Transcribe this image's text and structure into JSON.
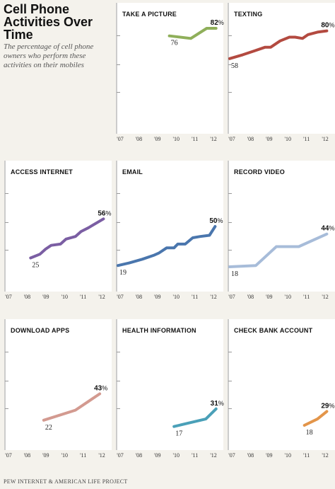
{
  "header": {
    "title": "Cell Phone Activities Over Time",
    "subtitle": "The percentage of cell phone owners who perform these activities on their mobiles"
  },
  "footer": {
    "source": "PEW INTERNET & AMERICAN LIFE PROJECT"
  },
  "chart_data": [
    {
      "type": "line",
      "title": "TAKE A PICTURE",
      "color": "#8faf5a",
      "ylim": [
        0,
        100
      ],
      "x_ticks": [
        "'07",
        "'08",
        "'09",
        "'10",
        "'11",
        "'12"
      ],
      "start_label": "76",
      "end_label": "82",
      "end_suffix": "%",
      "series": [
        {
          "x": [
            2009.75,
            2010.9,
            2011.75,
            2012.25
          ],
          "values": [
            76,
            74,
            82,
            82
          ]
        }
      ]
    },
    {
      "type": "line",
      "title": "TEXTING",
      "color": "#b34a40",
      "ylim": [
        0,
        100
      ],
      "x_ticks": [
        "'07",
        "'08",
        "'09",
        "'10",
        "'11",
        "'12"
      ],
      "start_label": "58",
      "end_label": "80",
      "end_suffix": "%",
      "series": [
        {
          "x": [
            2007,
            2007.7,
            2008.3,
            2008.9,
            2009.2,
            2009.7,
            2010.2,
            2010.5,
            2010.9,
            2011.2,
            2011.7,
            2012.2
          ],
          "values": [
            58,
            61,
            64,
            67,
            67,
            72,
            75,
            75,
            74,
            77,
            79,
            80
          ]
        }
      ]
    },
    {
      "type": "line",
      "title": "ACCESS INTERNET",
      "color": "#7b5ea3",
      "ylim": [
        0,
        100
      ],
      "x_ticks": [
        "'07",
        "'08",
        "'09",
        "'10",
        "'11",
        "'12"
      ],
      "start_label": "25",
      "end_label": "56",
      "end_suffix": "%",
      "series": [
        {
          "x": [
            2008.3,
            2008.8,
            2009.1,
            2009.4,
            2009.9,
            2010.2,
            2010.7,
            2011,
            2011.4,
            2012.2
          ],
          "values": [
            25,
            28,
            32,
            35,
            36,
            40,
            42,
            46,
            49,
            56
          ]
        }
      ]
    },
    {
      "type": "line",
      "title": "EMAIL",
      "color": "#4a76ad",
      "ylim": [
        0,
        100
      ],
      "x_ticks": [
        "'07",
        "'08",
        "'09",
        "'10",
        "'11",
        "'12"
      ],
      "start_label": "19",
      "end_label": "50",
      "end_suffix": "%",
      "series": [
        {
          "x": [
            2007,
            2007.6,
            2008.3,
            2008.9,
            2009.2,
            2009.6,
            2010,
            2010.2,
            2010.6,
            2011,
            2011.4,
            2011.9,
            2012.2
          ],
          "values": [
            19,
            21,
            24,
            27,
            29,
            33,
            33,
            36,
            36,
            41,
            42,
            43,
            50
          ]
        }
      ]
    },
    {
      "type": "line",
      "title": "RECORD VIDEO",
      "color": "#a7bcd9",
      "ylim": [
        0,
        100
      ],
      "x_ticks": [
        "'07",
        "'08",
        "'09",
        "'10",
        "'11",
        "'12"
      ],
      "start_label": "18",
      "end_label": "44",
      "end_suffix": "%",
      "series": [
        {
          "x": [
            2007,
            2008.4,
            2009.5,
            2010.7,
            2012.2
          ],
          "values": [
            18,
            19,
            34,
            34,
            44
          ]
        }
      ]
    },
    {
      "type": "line",
      "title": "DOWNLOAD APPS",
      "color": "#d39a90",
      "ylim": [
        0,
        100
      ],
      "x_ticks": [
        "'07",
        "'08",
        "'09",
        "'10",
        "'11",
        "'12"
      ],
      "start_label": "22",
      "end_label": "43",
      "end_suffix": "%",
      "series": [
        {
          "x": [
            2009,
            2010.7,
            2012
          ],
          "values": [
            22,
            30,
            43
          ]
        }
      ]
    },
    {
      "type": "line",
      "title": "HEALTH INFORMATION",
      "color": "#4aa0b8",
      "ylim": [
        0,
        100
      ],
      "x_ticks": [
        "'07",
        "'08",
        "'09",
        "'10",
        "'11",
        "'12"
      ],
      "start_label": "17",
      "end_label": "31",
      "end_suffix": "%",
      "series": [
        {
          "x": [
            2010,
            2011.7,
            2012.25
          ],
          "values": [
            17,
            23,
            31
          ]
        }
      ]
    },
    {
      "type": "line",
      "title": "CHECK BANK ACCOUNT",
      "color": "#e3954a",
      "ylim": [
        0,
        100
      ],
      "x_ticks": [
        "'07",
        "'08",
        "'09",
        "'10",
        "'11",
        "'12"
      ],
      "start_label": "18",
      "end_label": "29",
      "end_suffix": "%",
      "series": [
        {
          "x": [
            2011,
            2011.7,
            2012.2
          ],
          "values": [
            18,
            23,
            29
          ]
        }
      ]
    }
  ]
}
